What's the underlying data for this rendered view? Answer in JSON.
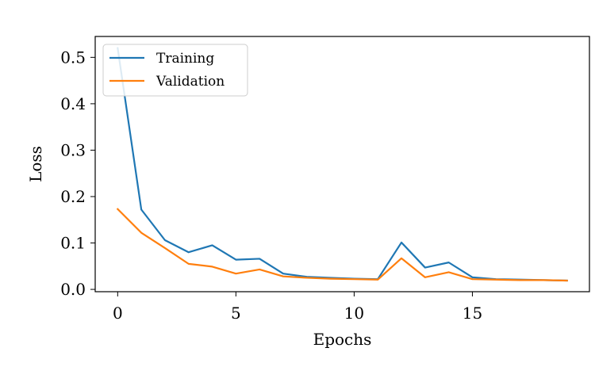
{
  "chart_data": {
    "type": "line",
    "title": "",
    "xlabel": "Epochs",
    "ylabel": "Loss",
    "x": [
      0,
      1,
      2,
      3,
      4,
      5,
      6,
      7,
      8,
      9,
      10,
      11,
      12,
      13,
      14,
      15,
      16,
      17,
      18,
      19
    ],
    "xlim": [
      -0.95,
      19.95
    ],
    "ylim": [
      -0.005,
      0.545
    ],
    "xticks": [
      0,
      5,
      10,
      15
    ],
    "xtick_labels": [
      "0",
      "5",
      "10",
      "15"
    ],
    "yticks": [
      0.0,
      0.1,
      0.2,
      0.3,
      0.4,
      0.5
    ],
    "ytick_labels": [
      "0.0",
      "0.1",
      "0.2",
      "0.3",
      "0.4",
      "0.5"
    ],
    "grid": false,
    "legend_position": "top-left",
    "series": [
      {
        "name": "Training",
        "color": "#1f77b4",
        "values": [
          0.52,
          0.172,
          0.106,
          0.08,
          0.095,
          0.064,
          0.066,
          0.034,
          0.027,
          0.025,
          0.023,
          0.022,
          0.101,
          0.047,
          0.058,
          0.026,
          0.022,
          0.021,
          0.02,
          0.019
        ]
      },
      {
        "name": "Validation",
        "color": "#ff7f0e",
        "values": [
          0.173,
          0.122,
          0.089,
          0.055,
          0.049,
          0.034,
          0.043,
          0.028,
          0.025,
          0.023,
          0.022,
          0.021,
          0.067,
          0.026,
          0.037,
          0.022,
          0.021,
          0.02,
          0.02,
          0.019
        ]
      }
    ]
  }
}
